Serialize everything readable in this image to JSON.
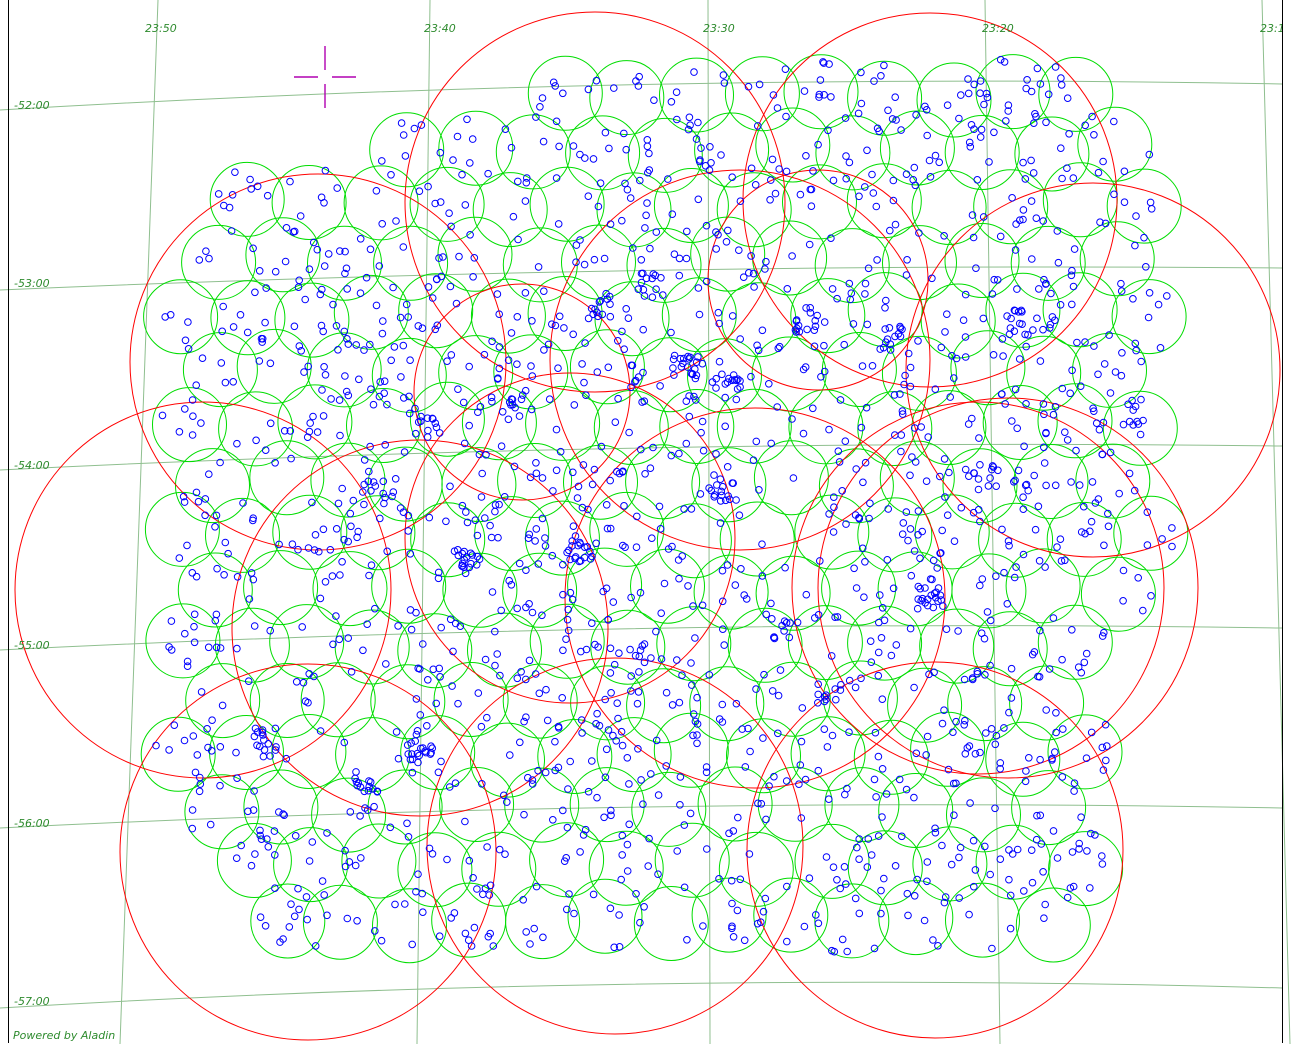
{
  "view": {
    "credit": "Powered by Aladin"
  },
  "grid": {
    "ra_labels": [
      "23:50",
      "23:40",
      "23:30",
      "23:20",
      "23:1"
    ],
    "dec_labels": [
      "-52:00",
      "-53:00",
      "-54:00",
      "-55:00",
      "-56:00",
      "-57:00"
    ],
    "color": "#8fbf8f"
  },
  "reticle": {
    "icon": "crosshair-icon",
    "color": "#b000b0"
  },
  "overlays": {
    "large_footprints": {
      "count": 16,
      "color": "#ff0000"
    },
    "small_footprints": {
      "count": 190,
      "color": "#00dd00"
    },
    "sources": {
      "count": 1900,
      "color": "#0000ff"
    }
  }
}
